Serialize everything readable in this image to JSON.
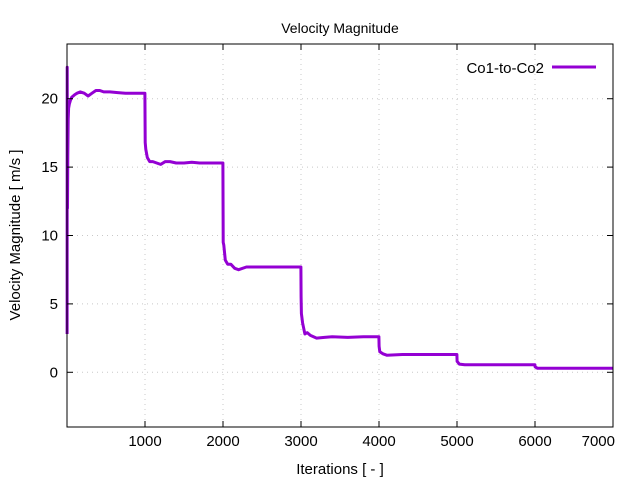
{
  "chart_data": {
    "type": "line",
    "title": "Velocity Magnitude",
    "xlabel": "Iterations [ - ]",
    "ylabel": "Velocity Magnitude [ m/s ]",
    "xlim": [
      0,
      7000
    ],
    "ylim": [
      -4,
      24
    ],
    "xticks": [
      1000,
      2000,
      3000,
      4000,
      5000,
      6000,
      7000
    ],
    "yticks": [
      0,
      5,
      10,
      15,
      20
    ],
    "grid": true,
    "legend_position": "top-right",
    "colors": {
      "series": "#9400d3"
    },
    "series": [
      {
        "name": "Co1-to-Co2",
        "x": [
          1,
          3,
          6,
          10,
          15,
          20,
          30,
          45,
          60,
          80,
          100,
          130,
          170,
          220,
          270,
          320,
          370,
          420,
          470,
          550,
          650,
          750,
          850,
          999,
          1001,
          1003,
          1010,
          1030,
          1060,
          1100,
          1150,
          1200,
          1260,
          1320,
          1400,
          1500,
          1600,
          1700,
          1800,
          1900,
          1999,
          2001,
          2003,
          2010,
          2030,
          2060,
          2100,
          2150,
          2200,
          2300,
          2500,
          2700,
          2900,
          2999,
          3001,
          3005,
          3020,
          3050,
          3080,
          3120,
          3200,
          3300,
          3400,
          3600,
          3800,
          3999,
          4001,
          4010,
          4050,
          4100,
          4300,
          4600,
          4999,
          5001,
          5030,
          5100,
          5400,
          5700,
          5999,
          6001,
          6030,
          6100,
          6500,
          7000
        ],
        "values": [
          2.8,
          22.3,
          12.0,
          15.8,
          18.5,
          19.3,
          19.6,
          19.9,
          20.1,
          20.2,
          20.3,
          20.4,
          20.5,
          20.4,
          20.2,
          20.4,
          20.6,
          20.6,
          20.5,
          20.5,
          20.45,
          20.4,
          20.4,
          20.4,
          18.0,
          16.8,
          16.3,
          15.7,
          15.4,
          15.4,
          15.3,
          15.2,
          15.4,
          15.4,
          15.3,
          15.3,
          15.35,
          15.3,
          15.3,
          15.3,
          15.3,
          11.5,
          9.5,
          9.3,
          8.2,
          7.9,
          7.9,
          7.6,
          7.5,
          7.7,
          7.7,
          7.7,
          7.7,
          7.7,
          5.5,
          4.3,
          3.6,
          2.8,
          2.9,
          2.7,
          2.5,
          2.55,
          2.6,
          2.55,
          2.6,
          2.6,
          1.9,
          1.5,
          1.35,
          1.25,
          1.3,
          1.3,
          1.3,
          0.8,
          0.6,
          0.55,
          0.55,
          0.55,
          0.55,
          0.4,
          0.3,
          0.3,
          0.3,
          0.3
        ]
      }
    ]
  }
}
